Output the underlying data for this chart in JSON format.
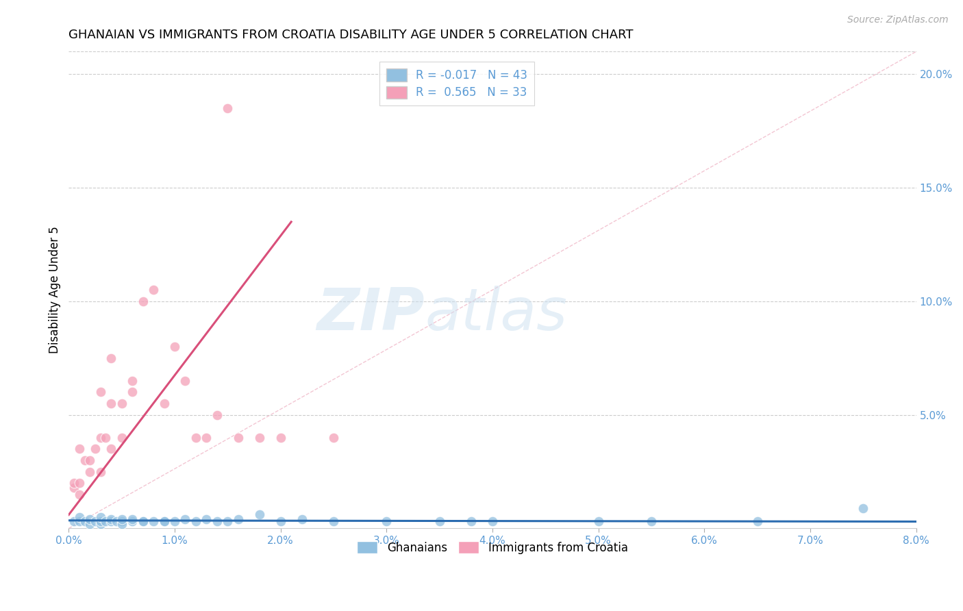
{
  "title": "GHANAIAN VS IMMIGRANTS FROM CROATIA DISABILITY AGE UNDER 5 CORRELATION CHART",
  "source": "Source: ZipAtlas.com",
  "ylabel": "Disability Age Under 5",
  "watermark_zip": "ZIP",
  "watermark_atlas": "atlas",
  "xlim": [
    0.0,
    0.08
  ],
  "ylim": [
    0.0,
    0.21
  ],
  "xticks": [
    0.0,
    0.01,
    0.02,
    0.03,
    0.04,
    0.05,
    0.06,
    0.07,
    0.08
  ],
  "xtick_labels": [
    "0.0%",
    "1.0%",
    "2.0%",
    "3.0%",
    "4.0%",
    "5.0%",
    "6.0%",
    "7.0%",
    "8.0%"
  ],
  "yticks_right": [
    0.0,
    0.05,
    0.1,
    0.15,
    0.2
  ],
  "ytick_labels_right": [
    "",
    "5.0%",
    "10.0%",
    "15.0%",
    "20.0%"
  ],
  "legend_r1": "R = -0.017",
  "legend_n1": "N = 43",
  "legend_r2": "R =  0.565",
  "legend_n2": "N = 33",
  "legend_label1": "Ghanaians",
  "legend_label2": "Immigrants from Croatia",
  "blue_color": "#92c0e0",
  "pink_color": "#f4a0b8",
  "blue_line_color": "#2b6cb0",
  "pink_line_color": "#d94f7a",
  "axis_label_color": "#5b9bd5",
  "grid_color": "#cccccc",
  "title_fontsize": 13,
  "blue_scatter_x": [
    0.0005,
    0.001,
    0.001,
    0.0015,
    0.002,
    0.002,
    0.0025,
    0.003,
    0.003,
    0.003,
    0.0035,
    0.004,
    0.004,
    0.0045,
    0.005,
    0.005,
    0.005,
    0.006,
    0.006,
    0.007,
    0.007,
    0.008,
    0.009,
    0.009,
    0.01,
    0.011,
    0.012,
    0.013,
    0.014,
    0.015,
    0.016,
    0.018,
    0.02,
    0.022,
    0.025,
    0.03,
    0.035,
    0.038,
    0.04,
    0.05,
    0.055,
    0.065,
    0.075
  ],
  "blue_scatter_y": [
    0.003,
    0.003,
    0.005,
    0.003,
    0.002,
    0.004,
    0.003,
    0.002,
    0.003,
    0.005,
    0.003,
    0.003,
    0.004,
    0.003,
    0.003,
    0.002,
    0.004,
    0.003,
    0.004,
    0.003,
    0.003,
    0.003,
    0.003,
    0.003,
    0.003,
    0.004,
    0.003,
    0.004,
    0.003,
    0.003,
    0.004,
    0.006,
    0.003,
    0.004,
    0.003,
    0.003,
    0.003,
    0.003,
    0.003,
    0.003,
    0.003,
    0.003,
    0.009
  ],
  "pink_scatter_x": [
    0.0005,
    0.0005,
    0.001,
    0.001,
    0.001,
    0.0015,
    0.002,
    0.002,
    0.0025,
    0.003,
    0.003,
    0.003,
    0.0035,
    0.004,
    0.004,
    0.004,
    0.005,
    0.005,
    0.006,
    0.006,
    0.007,
    0.008,
    0.009,
    0.01,
    0.011,
    0.012,
    0.013,
    0.014,
    0.015,
    0.016,
    0.018,
    0.02,
    0.025
  ],
  "pink_scatter_y": [
    0.018,
    0.02,
    0.015,
    0.02,
    0.035,
    0.03,
    0.025,
    0.03,
    0.035,
    0.025,
    0.04,
    0.06,
    0.04,
    0.035,
    0.055,
    0.075,
    0.04,
    0.055,
    0.06,
    0.065,
    0.1,
    0.105,
    0.055,
    0.08,
    0.065,
    0.04,
    0.04,
    0.05,
    0.185,
    0.04,
    0.04,
    0.04,
    0.04
  ],
  "blue_trendline_x": [
    0.0,
    0.08
  ],
  "blue_trendline_y": [
    0.0035,
    0.003
  ],
  "pink_trendline_x": [
    0.0,
    0.021
  ],
  "pink_trendline_y": [
    0.006,
    0.135
  ],
  "diag_line_x": [
    0.0,
    0.08
  ],
  "diag_line_y": [
    0.0,
    0.21
  ]
}
